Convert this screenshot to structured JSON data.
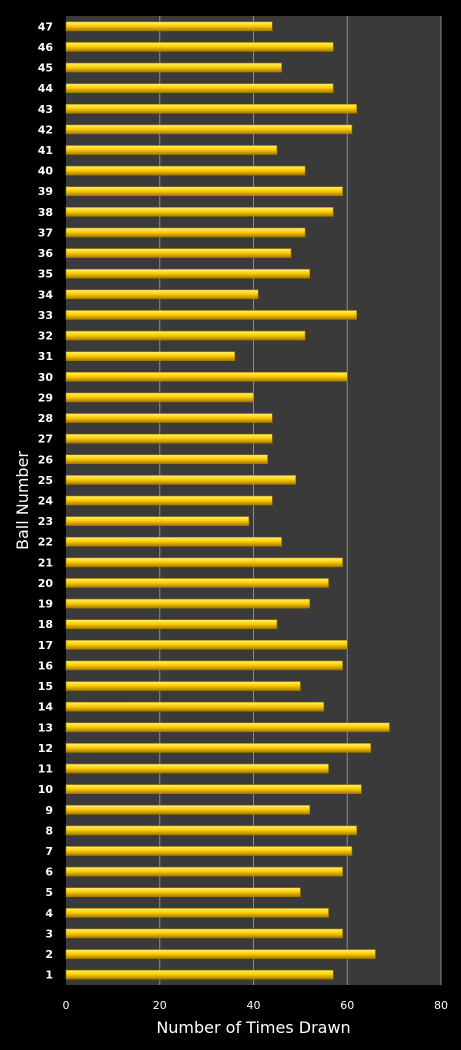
{
  "chart_data": {
    "type": "bar",
    "orientation": "horizontal",
    "categories": [
      "1",
      "2",
      "3",
      "4",
      "5",
      "6",
      "7",
      "8",
      "9",
      "10",
      "11",
      "12",
      "13",
      "14",
      "15",
      "16",
      "17",
      "18",
      "19",
      "20",
      "21",
      "22",
      "23",
      "24",
      "25",
      "26",
      "27",
      "28",
      "29",
      "30",
      "31",
      "32",
      "33",
      "34",
      "35",
      "36",
      "37",
      "38",
      "39",
      "40",
      "41",
      "42",
      "43",
      "44",
      "45",
      "46",
      "47"
    ],
    "values": [
      57,
      66,
      59,
      56,
      50,
      59,
      61,
      62,
      52,
      63,
      56,
      65,
      69,
      55,
      50,
      59,
      60,
      45,
      52,
      56,
      59,
      46,
      39,
      44,
      49,
      43,
      44,
      44,
      40,
      60,
      36,
      51,
      62,
      41,
      52,
      48,
      51,
      57,
      59,
      51,
      45,
      61,
      62,
      57,
      46,
      57,
      44
    ],
    "xlabel": "Number of Times Drawn",
    "ylabel": "Ball Number",
    "xlim": [
      0,
      80
    ],
    "xticks": [
      0,
      20,
      40,
      60,
      80
    ],
    "grid": true,
    "colors": {
      "background": "#000000",
      "plot_area": "#3a3a3a",
      "bar_fill": "#ffd000",
      "bar_highlight": "#fff27a",
      "bar_shadow": "#a57a00",
      "grid": "#8a8a8a",
      "text": "#ffffff"
    }
  }
}
